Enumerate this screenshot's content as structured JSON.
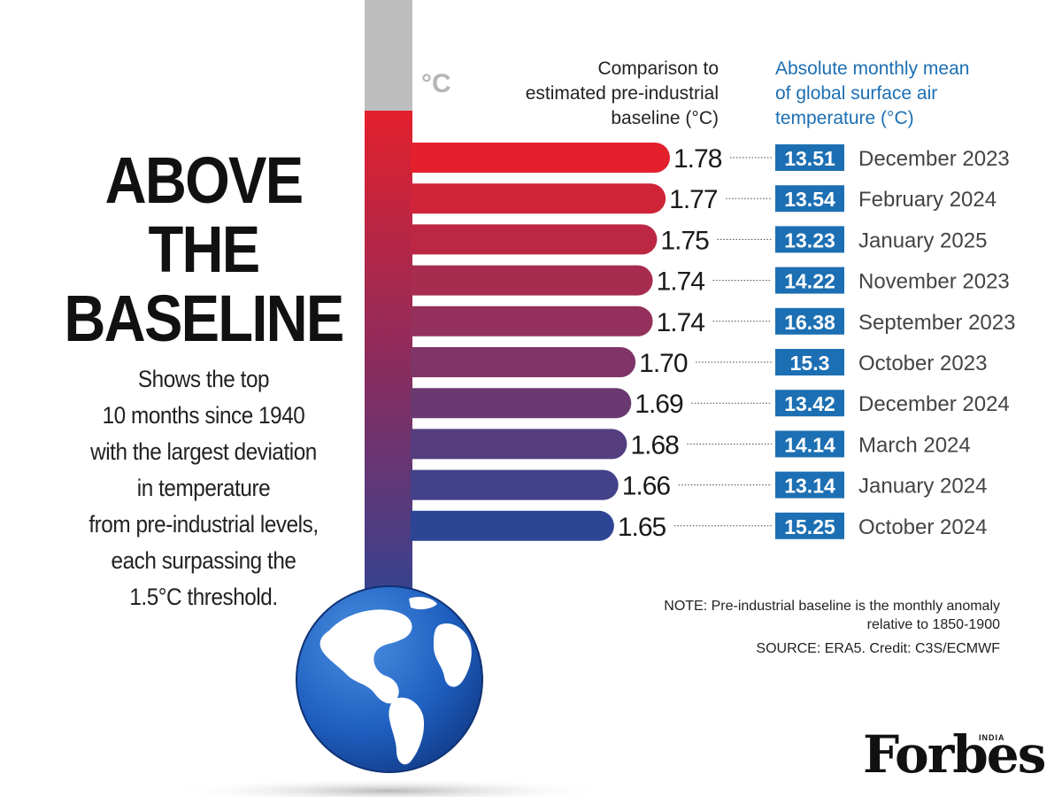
{
  "headline": [
    "ABOVE",
    "THE",
    "BASELINE"
  ],
  "description": [
    "Shows the top",
    "10 months since 1940",
    "with the largest deviation",
    "in temperature",
    "from pre-industrial levels,",
    "each surpassing the",
    "1.5°C threshold."
  ],
  "unit_label": "°C",
  "column_headers": {
    "left": [
      "Comparison to",
      "estimated pre-industrial",
      "baseline (°C)"
    ],
    "right": [
      "Absolute monthly mean",
      "of global surface air",
      "temperature (°C)"
    ]
  },
  "note": [
    "NOTE: Pre-industrial baseline is the monthly anomaly",
    "relative to 1850-1900"
  ],
  "source": "SOURCE: ERA5. Credit: C3S/ECMWF",
  "brand": {
    "name": "Forbes",
    "edition": "INDIA"
  },
  "colors": {
    "bar_top": "#e4202d",
    "bar_bottom": "#2e4595",
    "badge": "#1c6fb3",
    "header_blue": "#1c6fb3",
    "tube_gray": "#bdbdbd"
  },
  "chart_data": {
    "type": "bar",
    "orientation": "horizontal",
    "categories": [
      "December 2023",
      "February 2024",
      "January 2025",
      "November 2023",
      "September 2023",
      "October 2023",
      "December 2024",
      "March 2024",
      "January 2024",
      "October 2024"
    ],
    "series": [
      {
        "name": "Comparison to estimated pre-industrial baseline (°C)",
        "values": [
          1.78,
          1.77,
          1.75,
          1.74,
          1.74,
          1.7,
          1.69,
          1.68,
          1.66,
          1.65
        ],
        "labels": [
          "1.78",
          "1.77",
          "1.75",
          "1.74",
          "1.74",
          "1.70",
          "1.69",
          "1.68",
          "1.66",
          "1.65"
        ]
      },
      {
        "name": "Absolute monthly mean of global surface air temperature (°C)",
        "values": [
          13.51,
          13.54,
          13.23,
          14.22,
          16.38,
          15.3,
          13.42,
          14.14,
          13.14,
          15.25
        ],
        "labels": [
          "13.51",
          "13.54",
          "13.23",
          "14.22",
          "16.38",
          "15.3",
          "13.42",
          "14.14",
          "13.14",
          "15.25"
        ]
      }
    ],
    "title": "ABOVE THE BASELINE",
    "xlabel": "",
    "ylabel": ""
  }
}
